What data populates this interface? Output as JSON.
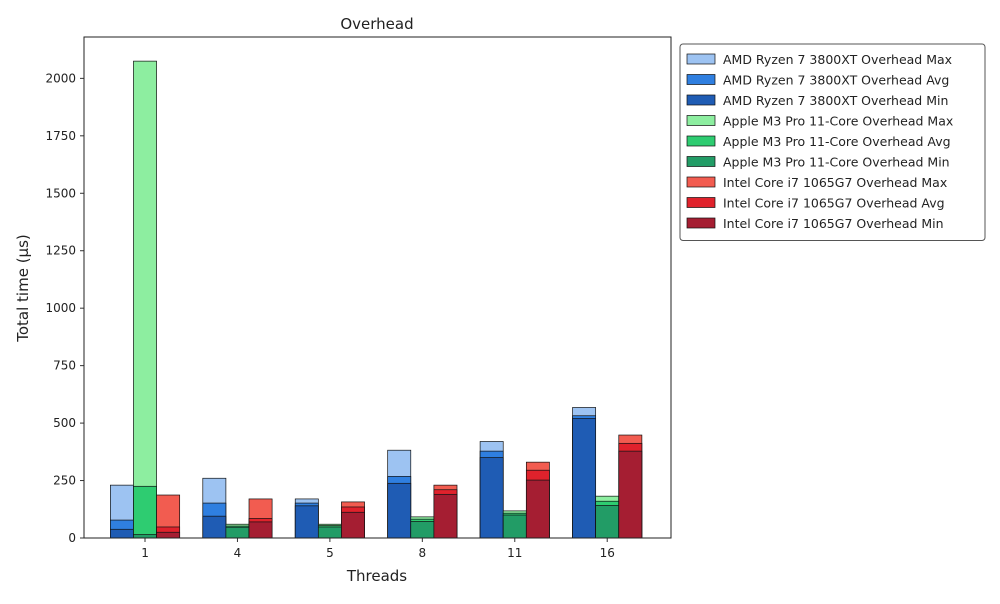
{
  "chart_data": {
    "type": "bar",
    "title": "Overhead",
    "xlabel": "Threads",
    "ylabel": "Total time (µs)",
    "categories": [
      "1",
      "4",
      "5",
      "8",
      "11",
      "16"
    ],
    "ylim": [
      0,
      2180
    ],
    "yticks": [
      0,
      250,
      500,
      750,
      1000,
      1250,
      1500,
      1750,
      2000
    ],
    "grid": false,
    "legend_position": "outside-top-right",
    "series": [
      {
        "name": "AMD Ryzen 7 3800XT Overhead Max",
        "group": "AMD Ryzen 7 3800XT",
        "color": "#9dc3f2",
        "values": [
          230,
          260,
          170,
          382,
          420,
          568
        ]
      },
      {
        "name": "AMD Ryzen 7 3800XT Overhead Avg",
        "group": "AMD Ryzen 7 3800XT",
        "color": "#2f7fe0",
        "values": [
          78,
          152,
          152,
          268,
          378,
          532
        ]
      },
      {
        "name": "AMD Ryzen 7 3800XT Overhead Min",
        "group": "AMD Ryzen 7 3800XT",
        "color": "#1f5cb4",
        "values": [
          38,
          95,
          140,
          238,
          350,
          520
        ]
      },
      {
        "name": "Apple M3 Pro 11-Core Overhead Max",
        "group": "Apple M3 Pro 11-Core",
        "color": "#8deea0",
        "values": [
          2075,
          60,
          60,
          92,
          118,
          182
        ]
      },
      {
        "name": "Apple M3 Pro 11-Core Overhead Avg",
        "group": "Apple M3 Pro 11-Core",
        "color": "#2ecc71",
        "values": [
          225,
          52,
          54,
          82,
          108,
          160
        ]
      },
      {
        "name": "Apple M3 Pro 11-Core Overhead Min",
        "group": "Apple M3 Pro 11-Core",
        "color": "#229c66",
        "values": [
          15,
          47,
          48,
          72,
          100,
          142
        ]
      },
      {
        "name": "Intel Core i7 1065G7 Overhead Max",
        "group": "Intel Core i7 1065G7",
        "color": "#f25c50",
        "values": [
          187,
          170,
          157,
          230,
          330,
          448
        ]
      },
      {
        "name": "Intel Core i7 1065G7 Overhead Avg",
        "group": "Intel Core i7 1065G7",
        "color": "#e0222c",
        "values": [
          48,
          85,
          135,
          210,
          295,
          412
        ]
      },
      {
        "name": "Intel Core i7 1065G7 Overhead Min",
        "group": "Intel Core i7 1065G7",
        "color": "#a51e32",
        "values": [
          25,
          70,
          112,
          190,
          252,
          378
        ]
      }
    ]
  }
}
